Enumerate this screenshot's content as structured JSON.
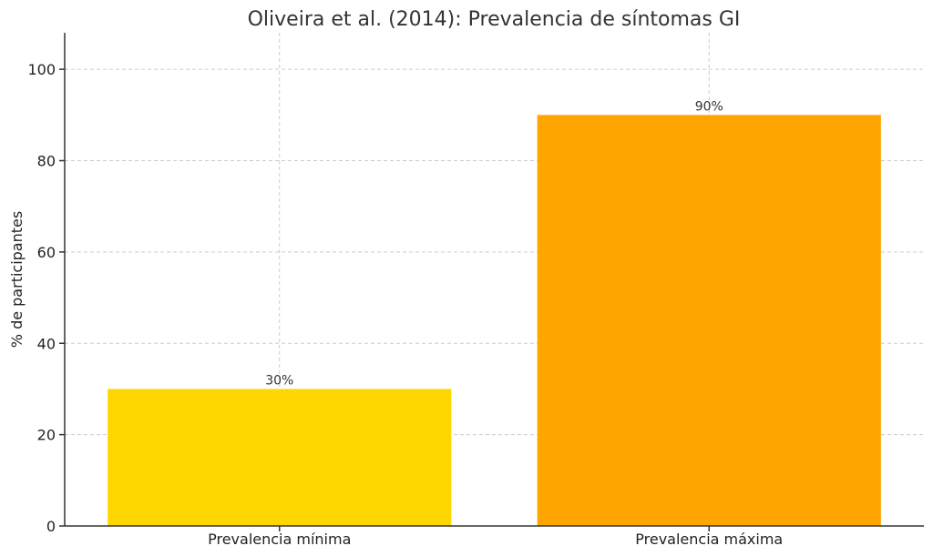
{
  "chart_data": {
    "type": "bar",
    "title": "Oliveira et al. (2014): Prevalencia de síntomas GI",
    "xlabel": "",
    "ylabel": "% de participantes",
    "categories": [
      "Prevalencia mínima",
      "Prevalencia máxima"
    ],
    "values": [
      30,
      90
    ],
    "data_labels": [
      "30%",
      "90%"
    ],
    "colors": [
      "#FFD700",
      "#FFA500"
    ],
    "ylim": [
      0,
      108
    ],
    "yticks": [
      0,
      20,
      40,
      60,
      80,
      100
    ],
    "ytick_labels": [
      "0",
      "20",
      "40",
      "60",
      "80",
      "100"
    ],
    "grid": true
  }
}
